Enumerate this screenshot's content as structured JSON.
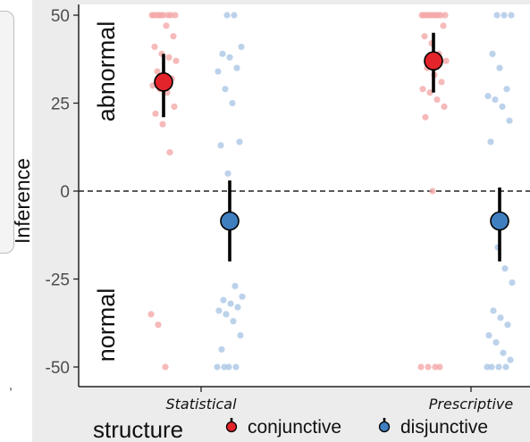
{
  "chart_data": {
    "type": "scatter",
    "subtype": "jittered points with mean and error bars",
    "ylabel": "Inference",
    "xlabel": "",
    "ylim": [
      -54,
      52
    ],
    "yticks": [
      50,
      25,
      0,
      -25,
      -50
    ],
    "categories": [
      "Statistical",
      "Prescriptive"
    ],
    "region_labels": {
      "top": "abnormal",
      "bottom": "normal"
    },
    "reference_line": {
      "y": 0,
      "style": "dashed"
    },
    "legend": {
      "title": "structure",
      "position": "bottom",
      "entries": [
        "conjunctive",
        "disjunctive"
      ]
    },
    "colors": {
      "conjunctive": "#e3242b",
      "disjunctive": "#3f7fc0",
      "conjunctive_points": "#f4a6a6",
      "disjunctive_points": "#a9c5e6",
      "panel": "#ffffff",
      "page": "#ececec"
    },
    "series": [
      {
        "name": "conjunctive",
        "summaries": [
          {
            "category": "Statistical",
            "mean": 31,
            "lower": 21,
            "upper": 39
          },
          {
            "category": "Prescriptive",
            "mean": 37,
            "lower": 28,
            "upper": 45
          }
        ],
        "points": [
          {
            "category": "Statistical",
            "y": [
              50,
              50,
              50,
              50,
              50,
              50,
              50,
              50,
              50,
              47,
              44,
              41,
              39,
              38,
              37,
              34,
              33,
              32,
              30,
              29,
              28,
              24,
              22,
              19,
              11,
              -35,
              -38,
              -50
            ]
          },
          {
            "category": "Prescriptive",
            "y": [
              50,
              50,
              50,
              50,
              50,
              50,
              50,
              50,
              50,
              50,
              47,
              44,
              42,
              39,
              37,
              35,
              33,
              31,
              29,
              28,
              26,
              24,
              21,
              0,
              -50,
              -50,
              -50,
              -50
            ]
          }
        ]
      },
      {
        "name": "disjunctive",
        "summaries": [
          {
            "category": "Statistical",
            "mean": -8.5,
            "lower": -20,
            "upper": 3
          },
          {
            "category": "Prescriptive",
            "mean": -8.5,
            "lower": -20,
            "upper": 1
          }
        ],
        "points": [
          {
            "category": "Statistical",
            "y": [
              50,
              50,
              41,
              39,
              38,
              35,
              34,
              29,
              25,
              14,
              13,
              5,
              -27,
              -30,
              -31,
              -32,
              -33,
              -34,
              -35,
              -37,
              -41,
              -45,
              -50,
              -50,
              -50,
              -50
            ]
          },
          {
            "category": "Prescriptive",
            "y": [
              50,
              50,
              50,
              39,
              35,
              29,
              27,
              26,
              24,
              20,
              14,
              -16,
              -22,
              -26,
              -34,
              -36,
              -38,
              -41,
              -43,
              -46,
              -48,
              -50,
              -50,
              -50,
              -50
            ]
          }
        ]
      }
    ]
  }
}
